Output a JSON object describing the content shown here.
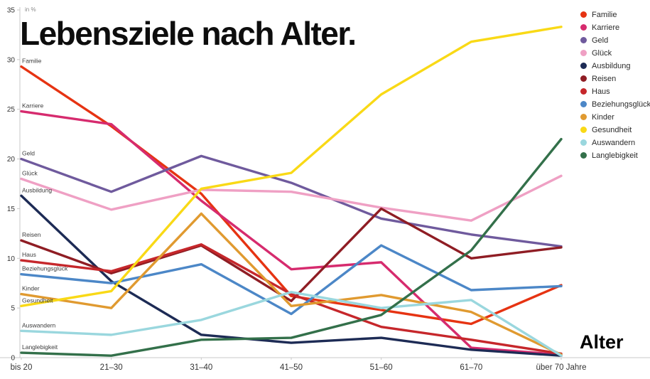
{
  "title": "Lebensziele nach Alter.",
  "chart_data": {
    "type": "line",
    "title": "Lebensziele nach Alter.",
    "xlabel": "Alter",
    "ylabel": "in %",
    "ylim": [
      0,
      35
    ],
    "y_ticks": [
      0,
      5,
      10,
      15,
      20,
      25,
      30,
      35
    ],
    "grid": false,
    "legend_position": "top-right",
    "categories": [
      "bis 20",
      "21–30",
      "31–40",
      "41–50",
      "51–60",
      "61–70",
      "über 70 Jahre"
    ],
    "series": [
      {
        "name": "Familie",
        "color": "#e63312",
        "values": [
          29.3,
          23.3,
          16.5,
          6.2,
          4.8,
          3.4,
          7.3
        ]
      },
      {
        "name": "Karriere",
        "color": "#d62b6e",
        "values": [
          24.8,
          23.5,
          15.8,
          8.9,
          9.6,
          1.0,
          0.3
        ]
      },
      {
        "name": "Geld",
        "color": "#6f5a9d",
        "values": [
          20.0,
          16.7,
          20.3,
          17.6,
          14.0,
          12.4,
          11.2
        ]
      },
      {
        "name": "Glück",
        "color": "#efa0c4",
        "values": [
          18.0,
          14.9,
          16.9,
          16.7,
          15.1,
          13.8,
          18.3
        ]
      },
      {
        "name": "Ausbildung",
        "color": "#1d2b55",
        "values": [
          16.3,
          7.7,
          2.3,
          1.5,
          2.0,
          0.8,
          0.2
        ]
      },
      {
        "name": "Reisen",
        "color": "#8f1d24",
        "values": [
          11.8,
          8.5,
          11.3,
          5.7,
          15.0,
          10.0,
          11.1
        ]
      },
      {
        "name": "Haus",
        "color": "#c6272b",
        "values": [
          9.8,
          8.7,
          11.4,
          6.4,
          3.1,
          1.8,
          0.4
        ]
      },
      {
        "name": "Beziehungsglück",
        "color": "#4c87c7",
        "values": [
          8.4,
          7.5,
          9.4,
          4.4,
          11.3,
          6.8,
          7.2
        ]
      },
      {
        "name": "Kinder",
        "color": "#e09a30",
        "values": [
          6.4,
          5.0,
          14.5,
          5.2,
          6.3,
          4.6,
          0.3
        ]
      },
      {
        "name": "Gesundheit",
        "color": "#f9d916",
        "values": [
          5.2,
          6.7,
          17.0,
          18.6,
          26.5,
          31.8,
          33.3
        ]
      },
      {
        "name": "Auswandern",
        "color": "#9ad7de",
        "values": [
          2.7,
          2.3,
          3.8,
          6.6,
          5.0,
          5.8,
          0.2
        ]
      },
      {
        "name": "Langlebigkeit",
        "color": "#33704a",
        "values": [
          0.5,
          0.2,
          1.8,
          2.0,
          4.3,
          10.8,
          22.0
        ]
      }
    ]
  }
}
